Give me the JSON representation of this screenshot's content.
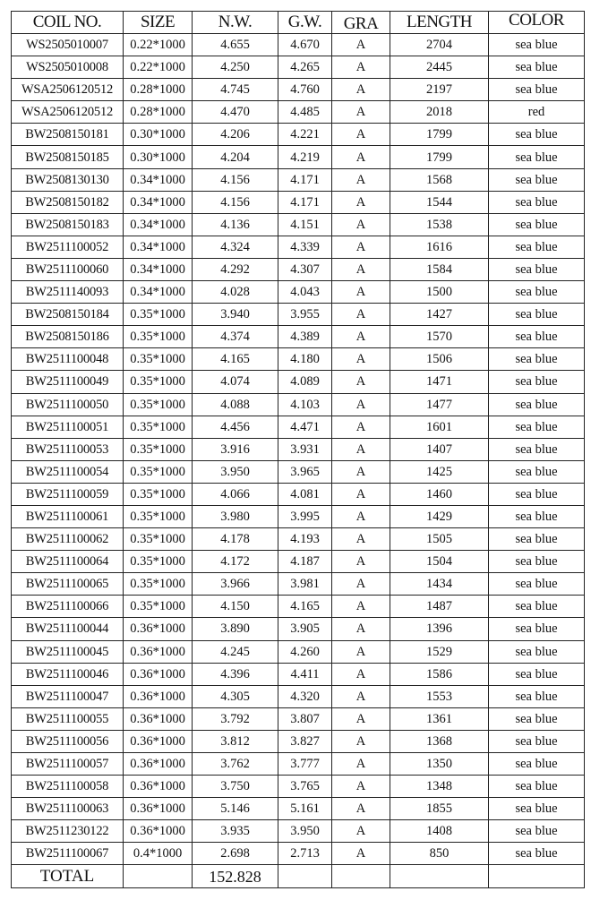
{
  "headers": [
    "COIL NO.",
    "SIZE",
    "N.W.",
    "G.W.",
    "GRA",
    "LENGTH",
    "COLOR"
  ],
  "rows": [
    [
      "WS2505010007",
      "0.22*1000",
      "4.655",
      "4.670",
      "A",
      "2704",
      "sea blue"
    ],
    [
      "WS2505010008",
      "0.22*1000",
      "4.250",
      "4.265",
      "A",
      "2445",
      "sea blue"
    ],
    [
      "WSA2506120512",
      "0.28*1000",
      "4.745",
      "4.760",
      "A",
      "2197",
      "sea blue"
    ],
    [
      "WSA2506120512",
      "0.28*1000",
      "4.470",
      "4.485",
      "A",
      "2018",
      "red"
    ],
    [
      "BW2508150181",
      "0.30*1000",
      "4.206",
      "4.221",
      "A",
      "1799",
      "sea blue"
    ],
    [
      "BW2508150185",
      "0.30*1000",
      "4.204",
      "4.219",
      "A",
      "1799",
      "sea blue"
    ],
    [
      "BW2508130130",
      "0.34*1000",
      "4.156",
      "4.171",
      "A",
      "1568",
      "sea blue"
    ],
    [
      "BW2508150182",
      "0.34*1000",
      "4.156",
      "4.171",
      "A",
      "1544",
      "sea blue"
    ],
    [
      "BW2508150183",
      "0.34*1000",
      "4.136",
      "4.151",
      "A",
      "1538",
      "sea blue"
    ],
    [
      "BW2511100052",
      "0.34*1000",
      "4.324",
      "4.339",
      "A",
      "1616",
      "sea blue"
    ],
    [
      "BW2511100060",
      "0.34*1000",
      "4.292",
      "4.307",
      "A",
      "1584",
      "sea blue"
    ],
    [
      "BW2511140093",
      "0.34*1000",
      "4.028",
      "4.043",
      "A",
      "1500",
      "sea blue"
    ],
    [
      "BW2508150184",
      "0.35*1000",
      "3.940",
      "3.955",
      "A",
      "1427",
      "sea blue"
    ],
    [
      "BW2508150186",
      "0.35*1000",
      "4.374",
      "4.389",
      "A",
      "1570",
      "sea blue"
    ],
    [
      "BW2511100048",
      "0.35*1000",
      "4.165",
      "4.180",
      "A",
      "1506",
      "sea blue"
    ],
    [
      "BW2511100049",
      "0.35*1000",
      "4.074",
      "4.089",
      "A",
      "1471",
      "sea blue"
    ],
    [
      "BW2511100050",
      "0.35*1000",
      "4.088",
      "4.103",
      "A",
      "1477",
      "sea blue"
    ],
    [
      "BW2511100051",
      "0.35*1000",
      "4.456",
      "4.471",
      "A",
      "1601",
      "sea blue"
    ],
    [
      "BW2511100053",
      "0.35*1000",
      "3.916",
      "3.931",
      "A",
      "1407",
      "sea blue"
    ],
    [
      "BW2511100054",
      "0.35*1000",
      "3.950",
      "3.965",
      "A",
      "1425",
      "sea blue"
    ],
    [
      "BW2511100059",
      "0.35*1000",
      "4.066",
      "4.081",
      "A",
      "1460",
      "sea blue"
    ],
    [
      "BW2511100061",
      "0.35*1000",
      "3.980",
      "3.995",
      "A",
      "1429",
      "sea blue"
    ],
    [
      "BW2511100062",
      "0.35*1000",
      "4.178",
      "4.193",
      "A",
      "1505",
      "sea blue"
    ],
    [
      "BW2511100064",
      "0.35*1000",
      "4.172",
      "4.187",
      "A",
      "1504",
      "sea blue"
    ],
    [
      "BW2511100065",
      "0.35*1000",
      "3.966",
      "3.981",
      "A",
      "1434",
      "sea blue"
    ],
    [
      "BW2511100066",
      "0.35*1000",
      "4.150",
      "4.165",
      "A",
      "1487",
      "sea blue"
    ],
    [
      "BW2511100044",
      "0.36*1000",
      "3.890",
      "3.905",
      "A",
      "1396",
      "sea blue"
    ],
    [
      "BW2511100045",
      "0.36*1000",
      "4.245",
      "4.260",
      "A",
      "1529",
      "sea blue"
    ],
    [
      "BW2511100046",
      "0.36*1000",
      "4.396",
      "4.411",
      "A",
      "1586",
      "sea blue"
    ],
    [
      "BW2511100047",
      "0.36*1000",
      "4.305",
      "4.320",
      "A",
      "1553",
      "sea blue"
    ],
    [
      "BW2511100055",
      "0.36*1000",
      "3.792",
      "3.807",
      "A",
      "1361",
      "sea blue"
    ],
    [
      "BW2511100056",
      "0.36*1000",
      "3.812",
      "3.827",
      "A",
      "1368",
      "sea blue"
    ],
    [
      "BW2511100057",
      "0.36*1000",
      "3.762",
      "3.777",
      "A",
      "1350",
      "sea blue"
    ],
    [
      "BW2511100058",
      "0.36*1000",
      "3.750",
      "3.765",
      "A",
      "1348",
      "sea blue"
    ],
    [
      "BW2511100063",
      "0.36*1000",
      "5.146",
      "5.161",
      "A",
      "1855",
      "sea blue"
    ],
    [
      "BW2511230122",
      "0.36*1000",
      "3.935",
      "3.950",
      "A",
      "1408",
      "sea blue"
    ],
    [
      "BW2511100067",
      "0.4*1000",
      "2.698",
      "2.713",
      "A",
      "850",
      "sea blue"
    ]
  ],
  "total": {
    "label": "TOTAL",
    "nw": "152.828"
  }
}
